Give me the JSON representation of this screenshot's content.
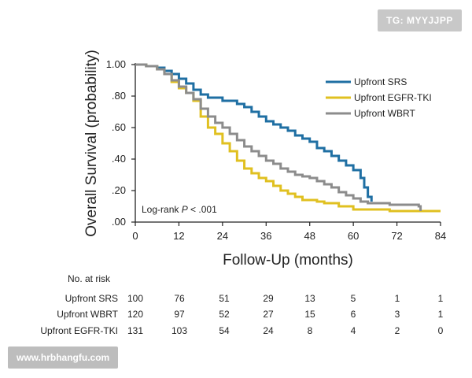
{
  "watermarks": {
    "top": "TG: MYYJJPP",
    "bottom": "www.hrbhangfu.com"
  },
  "chart_data": {
    "type": "line",
    "title": "",
    "xlabel": "Follow-Up (months)",
    "ylabel": "Overall Survival (probability)",
    "xlim": [
      0,
      84
    ],
    "ylim": [
      0,
      1.0
    ],
    "xticks": [
      0,
      12,
      24,
      36,
      48,
      60,
      72,
      84
    ],
    "yticks": [
      {
        "value": 1.0,
        "label": "1.00"
      },
      {
        "value": 0.8,
        "label": ".80"
      },
      {
        "value": 0.6,
        "label": ".60"
      },
      {
        "value": 0.4,
        "label": ".40"
      },
      {
        "value": 0.2,
        "label": ".20"
      },
      {
        "value": 0.0,
        "label": ".00"
      }
    ],
    "annotation": {
      "text_pre": "Log-rank ",
      "text_p": "P",
      "text_post": " < .001"
    },
    "legend_position": "top-right",
    "series": [
      {
        "name": "Upfront SRS",
        "color": "#1f6fa3",
        "points": [
          [
            0,
            1.0
          ],
          [
            3,
            0.99
          ],
          [
            6,
            0.98
          ],
          [
            8,
            0.96
          ],
          [
            10,
            0.94
          ],
          [
            12,
            0.91
          ],
          [
            14,
            0.88
          ],
          [
            16,
            0.84
          ],
          [
            18,
            0.81
          ],
          [
            20,
            0.79
          ],
          [
            22,
            0.79
          ],
          [
            24,
            0.77
          ],
          [
            26,
            0.77
          ],
          [
            28,
            0.75
          ],
          [
            30,
            0.73
          ],
          [
            32,
            0.7
          ],
          [
            34,
            0.67
          ],
          [
            36,
            0.64
          ],
          [
            38,
            0.62
          ],
          [
            40,
            0.6
          ],
          [
            42,
            0.58
          ],
          [
            44,
            0.55
          ],
          [
            46,
            0.53
          ],
          [
            48,
            0.51
          ],
          [
            50,
            0.47
          ],
          [
            52,
            0.45
          ],
          [
            54,
            0.42
          ],
          [
            56,
            0.39
          ],
          [
            58,
            0.36
          ],
          [
            60,
            0.33
          ],
          [
            62,
            0.28
          ],
          [
            63,
            0.22
          ],
          [
            64,
            0.16
          ],
          [
            65,
            0.13
          ]
        ]
      },
      {
        "name": "Upfront EGFR-TKI",
        "color": "#e0c020",
        "points": [
          [
            0,
            1.0
          ],
          [
            3,
            0.99
          ],
          [
            6,
            0.97
          ],
          [
            8,
            0.94
          ],
          [
            10,
            0.89
          ],
          [
            12,
            0.85
          ],
          [
            14,
            0.82
          ],
          [
            16,
            0.77
          ],
          [
            18,
            0.67
          ],
          [
            20,
            0.6
          ],
          [
            22,
            0.56
          ],
          [
            24,
            0.5
          ],
          [
            26,
            0.45
          ],
          [
            28,
            0.39
          ],
          [
            30,
            0.34
          ],
          [
            32,
            0.31
          ],
          [
            34,
            0.28
          ],
          [
            36,
            0.26
          ],
          [
            38,
            0.23
          ],
          [
            40,
            0.2
          ],
          [
            42,
            0.18
          ],
          [
            44,
            0.16
          ],
          [
            46,
            0.14
          ],
          [
            48,
            0.14
          ],
          [
            50,
            0.13
          ],
          [
            52,
            0.12
          ],
          [
            54,
            0.12
          ],
          [
            56,
            0.1
          ],
          [
            58,
            0.1
          ],
          [
            60,
            0.08
          ],
          [
            65,
            0.08
          ],
          [
            70,
            0.07
          ],
          [
            75,
            0.07
          ],
          [
            80,
            0.07
          ],
          [
            84,
            0.07
          ]
        ]
      },
      {
        "name": "Upfront WBRT",
        "color": "#8c8c8c",
        "points": [
          [
            0,
            1.0
          ],
          [
            3,
            0.99
          ],
          [
            6,
            0.97
          ],
          [
            8,
            0.94
          ],
          [
            10,
            0.9
          ],
          [
            12,
            0.86
          ],
          [
            14,
            0.82
          ],
          [
            16,
            0.78
          ],
          [
            18,
            0.72
          ],
          [
            20,
            0.67
          ],
          [
            22,
            0.63
          ],
          [
            24,
            0.6
          ],
          [
            26,
            0.56
          ],
          [
            28,
            0.52
          ],
          [
            30,
            0.48
          ],
          [
            32,
            0.45
          ],
          [
            34,
            0.42
          ],
          [
            36,
            0.39
          ],
          [
            38,
            0.37
          ],
          [
            40,
            0.34
          ],
          [
            42,
            0.32
          ],
          [
            44,
            0.3
          ],
          [
            46,
            0.29
          ],
          [
            48,
            0.28
          ],
          [
            50,
            0.26
          ],
          [
            52,
            0.24
          ],
          [
            54,
            0.22
          ],
          [
            56,
            0.19
          ],
          [
            58,
            0.17
          ],
          [
            60,
            0.15
          ],
          [
            62,
            0.13
          ],
          [
            64,
            0.12
          ],
          [
            66,
            0.12
          ],
          [
            70,
            0.11
          ],
          [
            74,
            0.11
          ],
          [
            77,
            0.11
          ],
          [
            78,
            0.1
          ],
          [
            78.5,
            0.07
          ]
        ]
      }
    ],
    "risk_table": {
      "header": "No. at risk",
      "columns": [
        0,
        12,
        24,
        36,
        48,
        60,
        72,
        84
      ],
      "rows": [
        {
          "label": "Upfront SRS",
          "values": [
            "100",
            "76",
            "51",
            "29",
            "13",
            "5",
            "1",
            "1"
          ]
        },
        {
          "label": "Upfront WBRT",
          "values": [
            "120",
            "97",
            "52",
            "27",
            "15",
            "6",
            "3",
            "1"
          ]
        },
        {
          "label": "Upfront EGFR-TKI",
          "values": [
            "131",
            "103",
            "54",
            "24",
            "8",
            "4",
            "2",
            "0"
          ]
        }
      ]
    }
  }
}
